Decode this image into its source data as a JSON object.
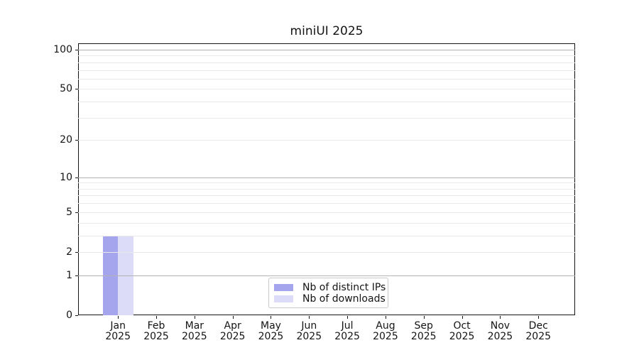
{
  "chart_data": {
    "type": "bar",
    "title": "miniUI 2025",
    "categories": [
      {
        "month": "Jan",
        "year": "2025"
      },
      {
        "month": "Feb",
        "year": "2025"
      },
      {
        "month": "Mar",
        "year": "2025"
      },
      {
        "month": "Apr",
        "year": "2025"
      },
      {
        "month": "May",
        "year": "2025"
      },
      {
        "month": "Jun",
        "year": "2025"
      },
      {
        "month": "Jul",
        "year": "2025"
      },
      {
        "month": "Aug",
        "year": "2025"
      },
      {
        "month": "Sep",
        "year": "2025"
      },
      {
        "month": "Oct",
        "year": "2025"
      },
      {
        "month": "Nov",
        "year": "2025"
      },
      {
        "month": "Dec",
        "year": "2025"
      }
    ],
    "series": [
      {
        "name": "Nb of distinct IPs",
        "color": "#a5a5ee",
        "values": [
          3,
          0,
          0,
          0,
          0,
          0,
          0,
          0,
          0,
          0,
          0,
          0
        ]
      },
      {
        "name": "Nb of downloads",
        "color": "#dcdcf8",
        "values": [
          3,
          0,
          0,
          0,
          0,
          0,
          0,
          0,
          0,
          0,
          0,
          0
        ]
      }
    ],
    "y_axis": {
      "scale": "log1p",
      "tick_labels": [
        0,
        1,
        2,
        5,
        10,
        20,
        50,
        100
      ],
      "major_gridlines": [
        1,
        10,
        100
      ],
      "minor_gridlines": [
        2,
        3,
        4,
        5,
        6,
        7,
        8,
        9,
        20,
        30,
        40,
        50,
        60,
        70,
        80,
        90
      ],
      "ylim": [
        0,
        112
      ]
    },
    "xlabel": "",
    "ylabel": "",
    "grid": true,
    "legend_position": "lower center"
  },
  "colors": {
    "background": "#ffffff",
    "text": "#141414",
    "axis_spine": "#141414",
    "grid_major": "#b3b3b3",
    "grid_minor": "#e9e9e9",
    "legend_border": "#c9c9c9",
    "bar_distinct_ips": "#a5a5ee",
    "bar_downloads": "#dcdcf8"
  }
}
